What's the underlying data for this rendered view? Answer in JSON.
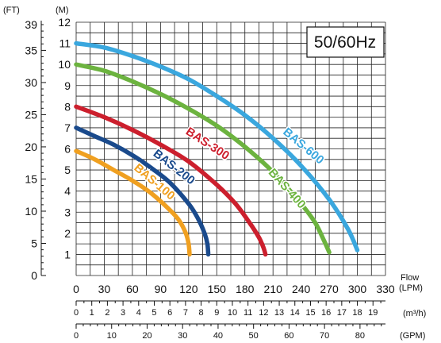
{
  "chart_data": {
    "type": "line",
    "frequency_label": "50/60Hz",
    "y_left_unit": "(FT)",
    "y_right_unit": "(M)",
    "x_title": "Flow",
    "x_unit_lpm": "(LPM)",
    "x_unit_m3h": "(m³/h)",
    "x_unit_gpm": "(GPM)",
    "ylim_m": [
      0,
      12
    ],
    "xlim_lpm": [
      0,
      330
    ],
    "grid": true,
    "ticks_ft": [
      0,
      5,
      10,
      15,
      20,
      25,
      30,
      35,
      39
    ],
    "ticks_m": [
      1,
      2,
      3,
      4,
      5,
      6,
      7,
      8,
      9,
      10,
      11,
      12
    ],
    "ticks_lpm": [
      0,
      30,
      60,
      90,
      120,
      150,
      180,
      210,
      240,
      270,
      300,
      330
    ],
    "ticks_m3h": [
      0,
      1,
      2,
      3,
      4,
      5,
      6,
      7,
      8,
      9,
      10,
      11,
      12,
      13,
      14,
      15,
      16,
      17,
      18,
      19
    ],
    "ticks_gpm": [
      0,
      10,
      20,
      30,
      40,
      50,
      60,
      70,
      80
    ],
    "series": [
      {
        "name": "BAS-100",
        "color": "#f0a020",
        "x": [
          0,
          20,
          40,
          60,
          80,
          100,
          110,
          117,
          120,
          121
        ],
        "y": [
          5.9,
          5.5,
          5.0,
          4.5,
          3.9,
          3.1,
          2.6,
          2.0,
          1.5,
          1.0
        ]
      },
      {
        "name": "BAS-200",
        "color": "#1a4a8c",
        "x": [
          0,
          20,
          40,
          60,
          80,
          100,
          120,
          130,
          137,
          140,
          141
        ],
        "y": [
          7.0,
          6.6,
          6.2,
          5.7,
          5.1,
          4.4,
          3.4,
          2.7,
          2.0,
          1.5,
          1.0
        ]
      },
      {
        "name": "BAS-300",
        "color": "#cc1f2d",
        "x": [
          0,
          30,
          60,
          90,
          120,
          150,
          170,
          185,
          195,
          200,
          202
        ],
        "y": [
          8.0,
          7.5,
          6.9,
          6.2,
          5.4,
          4.3,
          3.4,
          2.5,
          1.8,
          1.3,
          1.0
        ]
      },
      {
        "name": "BAS-400",
        "color": "#6cb33f",
        "x": [
          0,
          30,
          60,
          90,
          120,
          150,
          180,
          210,
          240,
          255,
          265,
          270
        ],
        "y": [
          10.0,
          9.7,
          9.2,
          8.6,
          7.9,
          7.1,
          6.1,
          4.9,
          3.4,
          2.5,
          1.6,
          1.1
        ]
      },
      {
        "name": "BAS-600",
        "color": "#3aa7de",
        "x": [
          0,
          30,
          60,
          90,
          120,
          150,
          180,
          210,
          240,
          270,
          290,
          300
        ],
        "y": [
          11.0,
          10.8,
          10.4,
          9.9,
          9.3,
          8.5,
          7.6,
          6.5,
          5.2,
          3.6,
          2.2,
          1.2
        ]
      }
    ]
  }
}
